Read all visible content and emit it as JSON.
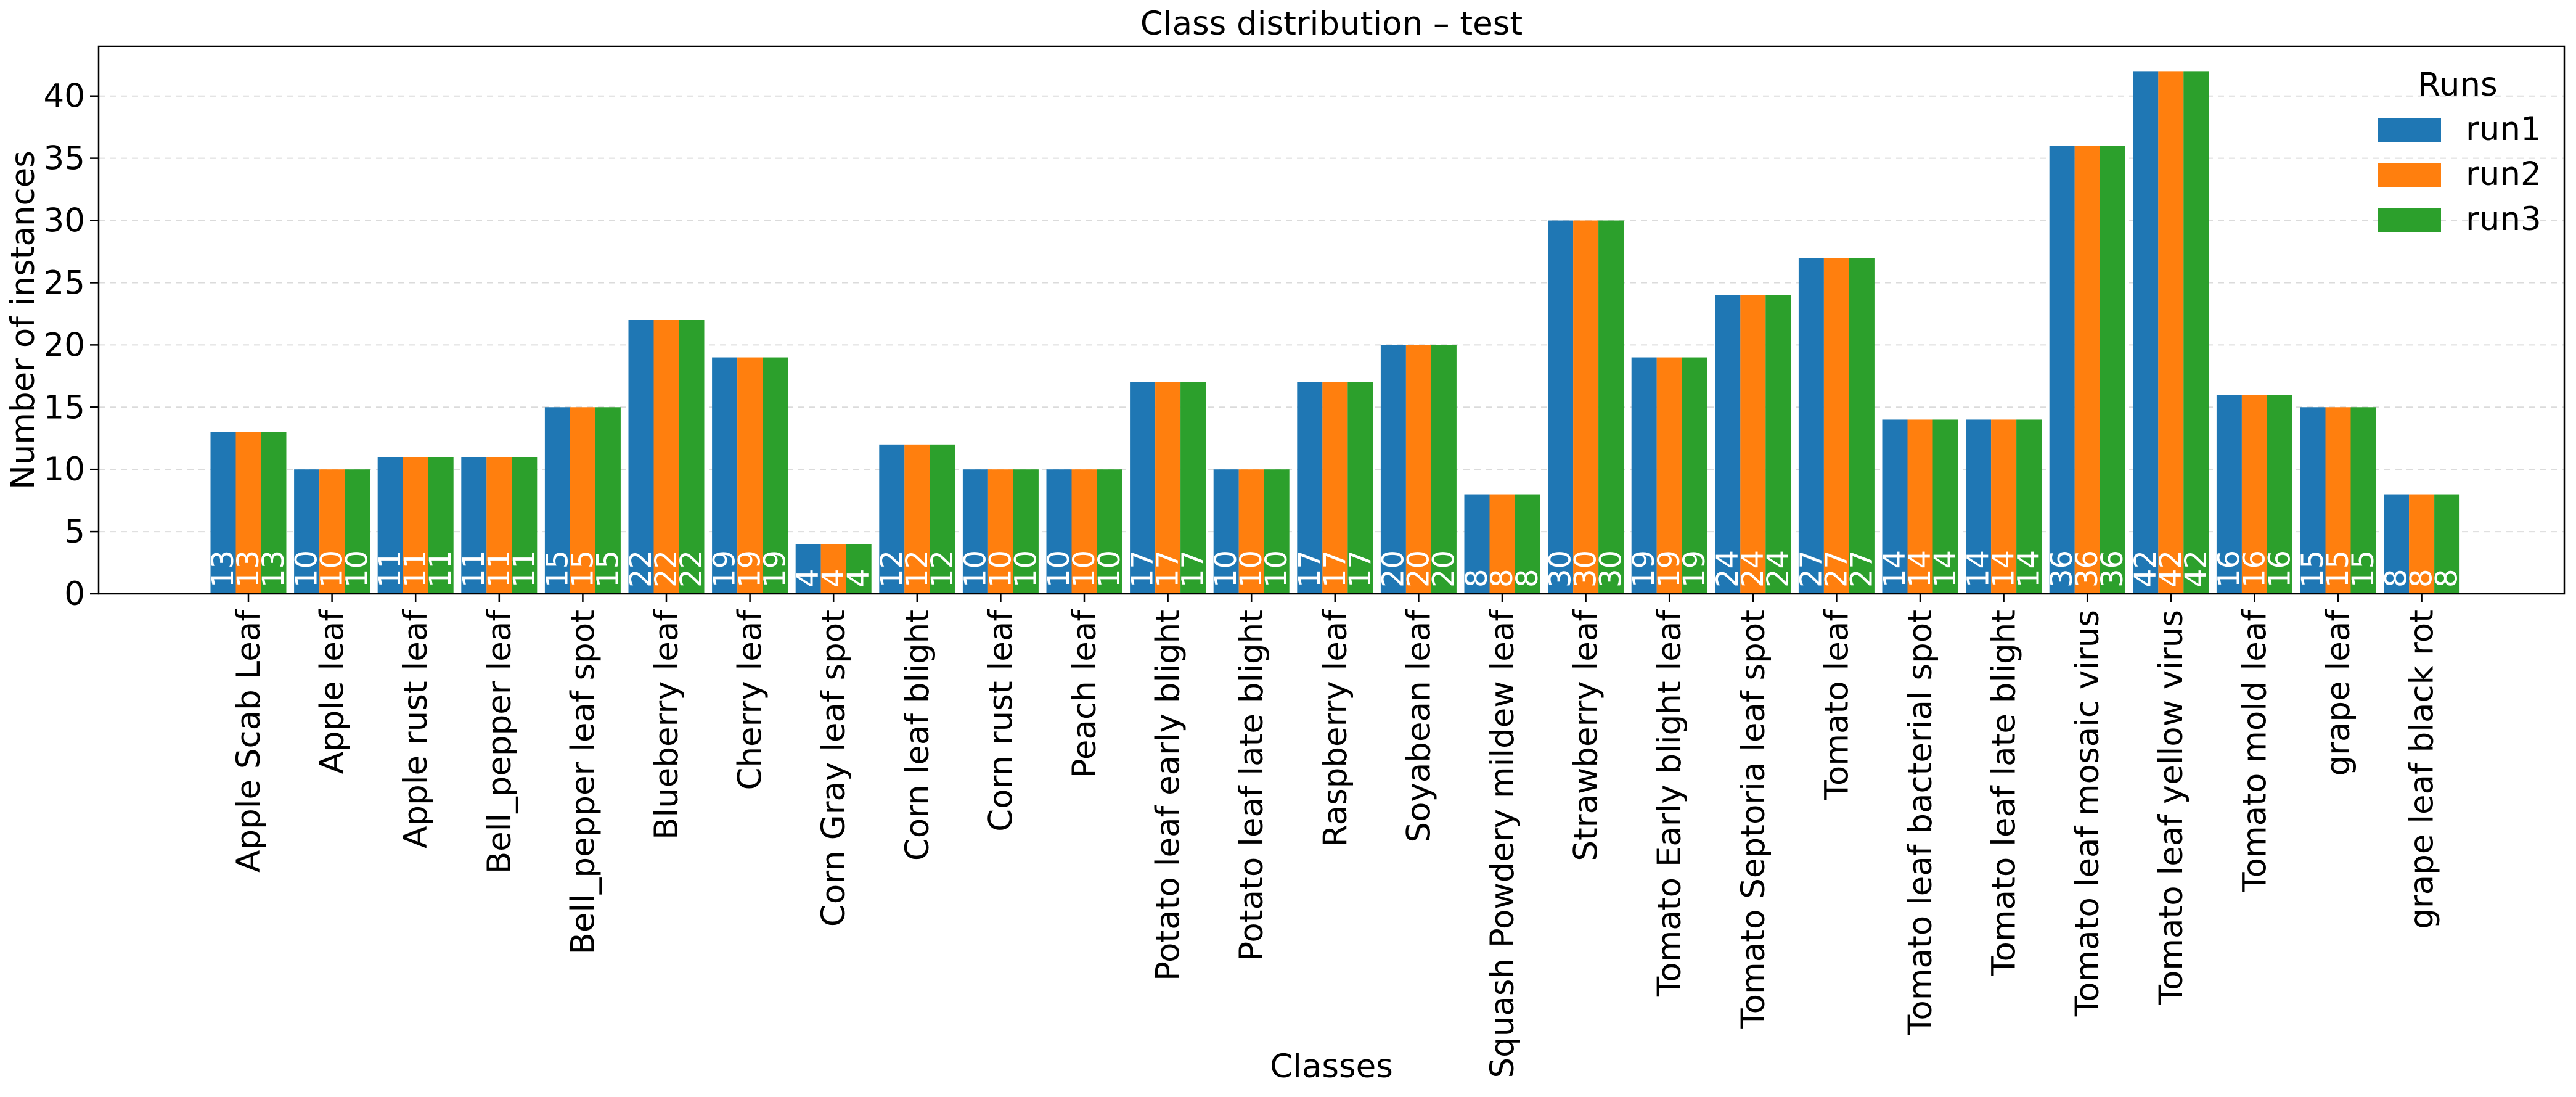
{
  "chart_data": {
    "type": "bar",
    "title": "Class distribution – test",
    "xlabel": "Classes",
    "ylabel": "Number of instances",
    "ylim": [
      0,
      44
    ],
    "yticks": [
      0,
      5,
      10,
      15,
      20,
      25,
      30,
      35,
      40
    ],
    "grid": "horizontal dashed",
    "legend_title": "Runs",
    "legend_position": "top-right",
    "categories": [
      "Apple Scab Leaf",
      "Apple leaf",
      "Apple rust leaf",
      "Bell_pepper leaf",
      "Bell_pepper leaf spot",
      "Blueberry leaf",
      "Cherry leaf",
      "Corn Gray leaf spot",
      "Corn leaf blight",
      "Corn rust leaf",
      "Peach leaf",
      "Potato leaf early blight",
      "Potato leaf late blight",
      "Raspberry leaf",
      "Soyabean leaf",
      "Squash Powdery mildew leaf",
      "Strawberry leaf",
      "Tomato Early blight leaf",
      "Tomato Septoria leaf spot",
      "Tomato leaf",
      "Tomato leaf bacterial spot",
      "Tomato leaf late blight",
      "Tomato leaf mosaic virus",
      "Tomato leaf yellow virus",
      "Tomato mold leaf",
      "grape leaf",
      "grape leaf black rot"
    ],
    "series": [
      {
        "name": "run1",
        "color": "#1f77b4",
        "values": [
          13,
          10,
          11,
          11,
          15,
          22,
          19,
          4,
          12,
          10,
          10,
          17,
          10,
          17,
          20,
          8,
          30,
          19,
          24,
          27,
          14,
          14,
          36,
          42,
          16,
          15,
          8
        ]
      },
      {
        "name": "run2",
        "color": "#ff7f0e",
        "values": [
          13,
          10,
          11,
          11,
          15,
          22,
          19,
          4,
          12,
          10,
          10,
          17,
          10,
          17,
          20,
          8,
          30,
          19,
          24,
          27,
          14,
          14,
          36,
          42,
          16,
          15,
          8
        ]
      },
      {
        "name": "run3",
        "color": "#2ca02c",
        "values": [
          13,
          10,
          11,
          11,
          15,
          22,
          19,
          4,
          12,
          10,
          10,
          17,
          10,
          17,
          20,
          8,
          30,
          19,
          24,
          27,
          14,
          14,
          36,
          42,
          16,
          15,
          8
        ]
      }
    ]
  }
}
